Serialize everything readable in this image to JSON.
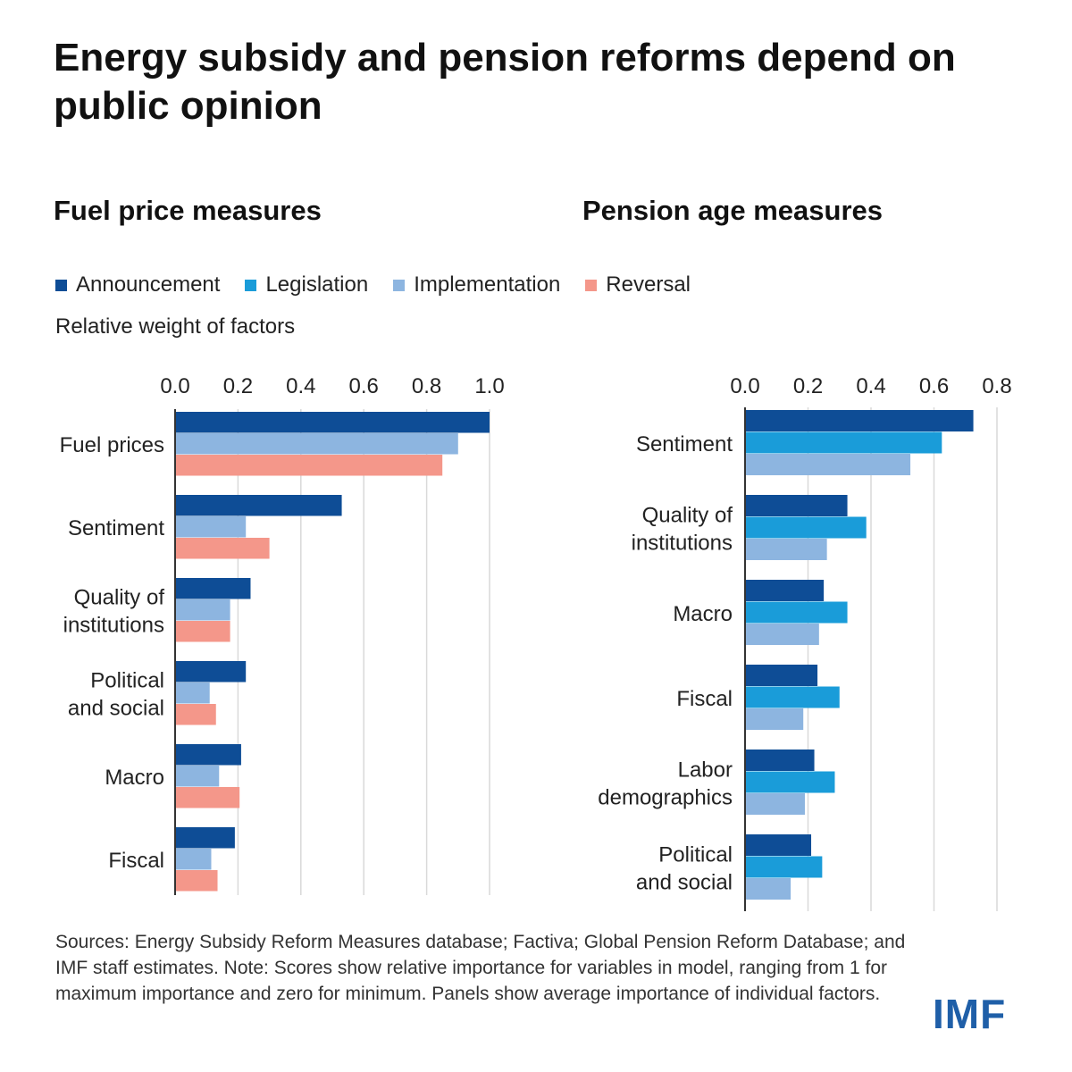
{
  "title": "Energy subsidy and pension reforms depend on public opinion",
  "legend": [
    {
      "label": "Announcement",
      "color": "#0e4d96"
    },
    {
      "label": "Legislation",
      "color": "#1a9cd9"
    },
    {
      "label": "Implementation",
      "color": "#8db5e0"
    },
    {
      "label": "Reversal",
      "color": "#f4978a"
    }
  ],
  "subtitle": "Relative weight of factors",
  "footnote": "Sources: Energy Subsidy Reform Measures database; Factiva; Global Pension Reform Database; and IMF staff estimates. Note: Scores show relative importance for variables in model, ranging from 1 for maximum importance and zero for minimum. Panels show average importance of individual factors.",
  "logo": "IMF",
  "chart_data": [
    {
      "type": "bar",
      "orientation": "horizontal",
      "title": "Fuel price measures",
      "ylabel": "Relative weight of factors",
      "categories": [
        [
          "Fuel prices"
        ],
        [
          "Sentiment"
        ],
        [
          "Quality of",
          "institutions"
        ],
        [
          "Political",
          "and social"
        ],
        [
          "Macro"
        ],
        [
          "Fiscal"
        ]
      ],
      "xlim": [
        0,
        1.0
      ],
      "ticks": [
        "0.0",
        "0.2",
        "0.4",
        "0.6",
        "0.8",
        "1.0"
      ],
      "series": [
        {
          "name": "Announcement",
          "color": "#0e4d96",
          "values": [
            1.0,
            0.53,
            0.24,
            0.225,
            0.21,
            0.19
          ]
        },
        {
          "name": "Implementation",
          "color": "#8db5e0",
          "values": [
            0.9,
            0.225,
            0.175,
            0.11,
            0.14,
            0.115
          ]
        },
        {
          "name": "Reversal",
          "color": "#f4978a",
          "values": [
            0.85,
            0.3,
            0.175,
            0.13,
            0.205,
            0.135
          ]
        }
      ]
    },
    {
      "type": "bar",
      "orientation": "horizontal",
      "title": "Pension age measures",
      "ylabel": "Relative weight of factors",
      "categories": [
        [
          "Sentiment"
        ],
        [
          "Quality of",
          "institutions"
        ],
        [
          "Macro"
        ],
        [
          "Fiscal"
        ],
        [
          "Labor",
          "demographics"
        ],
        [
          "Political",
          "and social"
        ]
      ],
      "xlim": [
        0,
        0.8
      ],
      "ticks": [
        "0.0",
        "0.2",
        "0.4",
        "0.6",
        "0.8"
      ],
      "series": [
        {
          "name": "Announcement",
          "color": "#0e4d96",
          "values": [
            0.725,
            0.325,
            0.25,
            0.23,
            0.22,
            0.21
          ]
        },
        {
          "name": "Legislation",
          "color": "#1a9cd9",
          "values": [
            0.625,
            0.385,
            0.325,
            0.3,
            0.285,
            0.245
          ]
        },
        {
          "name": "Implementation",
          "color": "#8db5e0",
          "values": [
            0.525,
            0.26,
            0.235,
            0.185,
            0.19,
            0.145
          ]
        }
      ]
    }
  ]
}
